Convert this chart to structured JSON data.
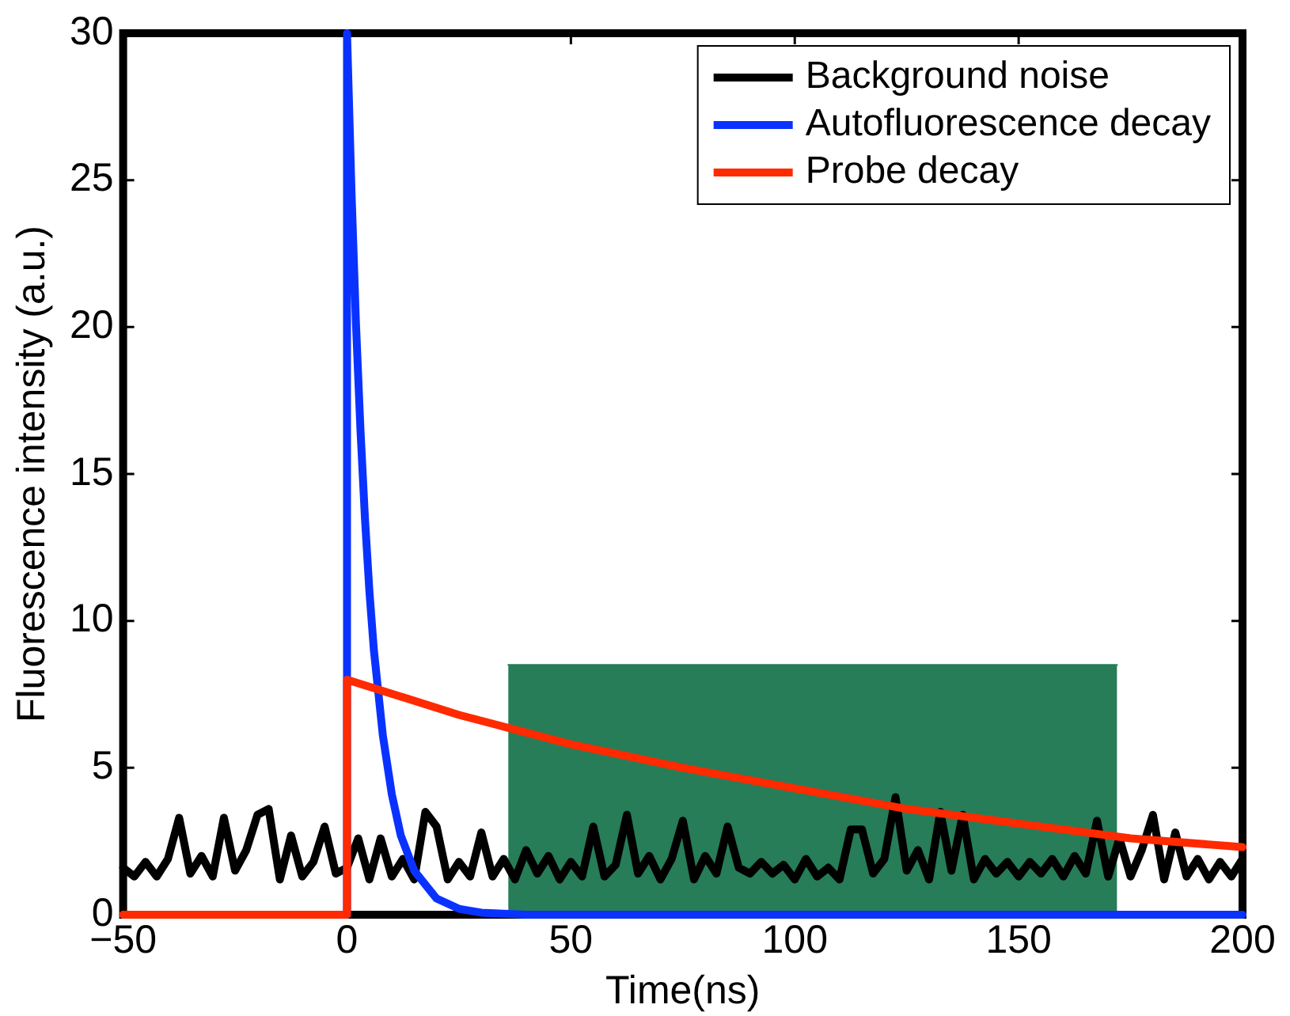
{
  "chart_data": {
    "type": "line",
    "xlabel": "Time(ns)",
    "ylabel": "Fluorescence intensity (a.u.)",
    "xlim": [
      -50,
      200
    ],
    "xticks": [
      {
        "value": -50,
        "label": "−50"
      },
      0,
      50,
      100,
      150,
      200
    ],
    "ylim": [
      0,
      30
    ],
    "yticks": [
      0,
      5,
      10,
      15,
      20,
      25,
      30
    ],
    "grid": false,
    "legend": "top right",
    "marker": "none",
    "line_style": "solid",
    "series": [
      {
        "type": "area",
        "color": "#267d58",
        "x": [
          36,
          172
        ],
        "values": [
          8.5,
          8.5
        ]
      },
      {
        "name": "Background noise",
        "color": "#000000",
        "x": [
          -50,
          -47.5,
          -45,
          -42.5,
          -40,
          -37.5,
          -35,
          -32.5,
          -30,
          -27.5,
          -25,
          -22.5,
          -20,
          -17.5,
          -15,
          -12.5,
          -10,
          -7.5,
          -5,
          -2.5,
          0,
          2.5,
          5,
          7.5,
          10,
          12.5,
          15,
          17.5,
          20,
          22.5,
          25,
          27.5,
          30,
          32.5,
          35,
          37.5,
          40,
          42.5,
          45,
          47.5,
          50,
          52.5,
          55,
          57.5,
          60,
          62.5,
          65,
          67.5,
          70,
          72.5,
          75,
          77.5,
          80,
          82.5,
          85,
          87.5,
          90,
          92.5,
          95,
          97.5,
          100,
          102.5,
          105,
          107.5,
          110,
          112.5,
          115,
          117.5,
          120,
          122.5,
          125,
          127.5,
          130,
          132.5,
          135,
          137.5,
          140,
          142.5,
          145,
          147.5,
          150,
          152.5,
          155,
          157.5,
          160,
          162.5,
          165,
          167.5,
          170,
          172.5,
          175,
          177.5,
          180,
          182.5,
          185,
          187.5,
          190,
          192.5,
          195,
          197.5,
          200
        ],
        "values": [
          1.6,
          1.3,
          1.8,
          1.3,
          1.9,
          3.3,
          1.4,
          2.0,
          1.3,
          3.3,
          1.5,
          2.2,
          3.4,
          3.6,
          1.2,
          2.7,
          1.3,
          1.8,
          3.0,
          1.4,
          1.6,
          2.6,
          1.2,
          2.6,
          1.3,
          1.9,
          1.2,
          3.5,
          3.0,
          1.2,
          1.8,
          1.3,
          2.8,
          1.3,
          1.9,
          1.2,
          2.2,
          1.4,
          2.0,
          1.2,
          1.8,
          1.3,
          3.0,
          1.3,
          1.7,
          3.4,
          1.4,
          2.0,
          1.2,
          1.9,
          3.2,
          1.2,
          2.0,
          1.4,
          3.0,
          1.6,
          1.4,
          1.8,
          1.4,
          1.7,
          1.2,
          1.9,
          1.3,
          1.6,
          1.2,
          2.9,
          2.9,
          1.4,
          1.9,
          4.0,
          1.5,
          2.2,
          1.2,
          3.5,
          1.5,
          3.4,
          1.2,
          1.9,
          1.4,
          1.8,
          1.3,
          1.8,
          1.4,
          1.9,
          1.3,
          2.0,
          1.4,
          3.2,
          1.3,
          2.6,
          1.3,
          2.2,
          3.4,
          1.2,
          2.8,
          1.3,
          1.9,
          1.2,
          1.8,
          1.3,
          1.9
        ]
      },
      {
        "name": "Autofluorescence decay",
        "color": "#0a32ff",
        "x": [
          -50,
          0,
          0,
          1,
          2,
          3,
          4,
          5,
          6,
          8,
          10,
          12,
          15,
          20,
          25,
          30,
          40,
          200
        ],
        "values": [
          0,
          0,
          30,
          24.6,
          20.1,
          16.5,
          13.5,
          11.0,
          9.0,
          6.1,
          4.1,
          2.7,
          1.5,
          0.55,
          0.2,
          0.07,
          0,
          0
        ]
      },
      {
        "name": "Probe decay",
        "color": "#ff2a00",
        "x": [
          -50,
          0,
          0,
          25,
          50,
          75,
          100,
          125,
          150,
          175,
          200
        ],
        "values": [
          0,
          0,
          8,
          6.8,
          5.8,
          5.0,
          4.3,
          3.6,
          3.1,
          2.6,
          2.3
        ]
      }
    ]
  }
}
